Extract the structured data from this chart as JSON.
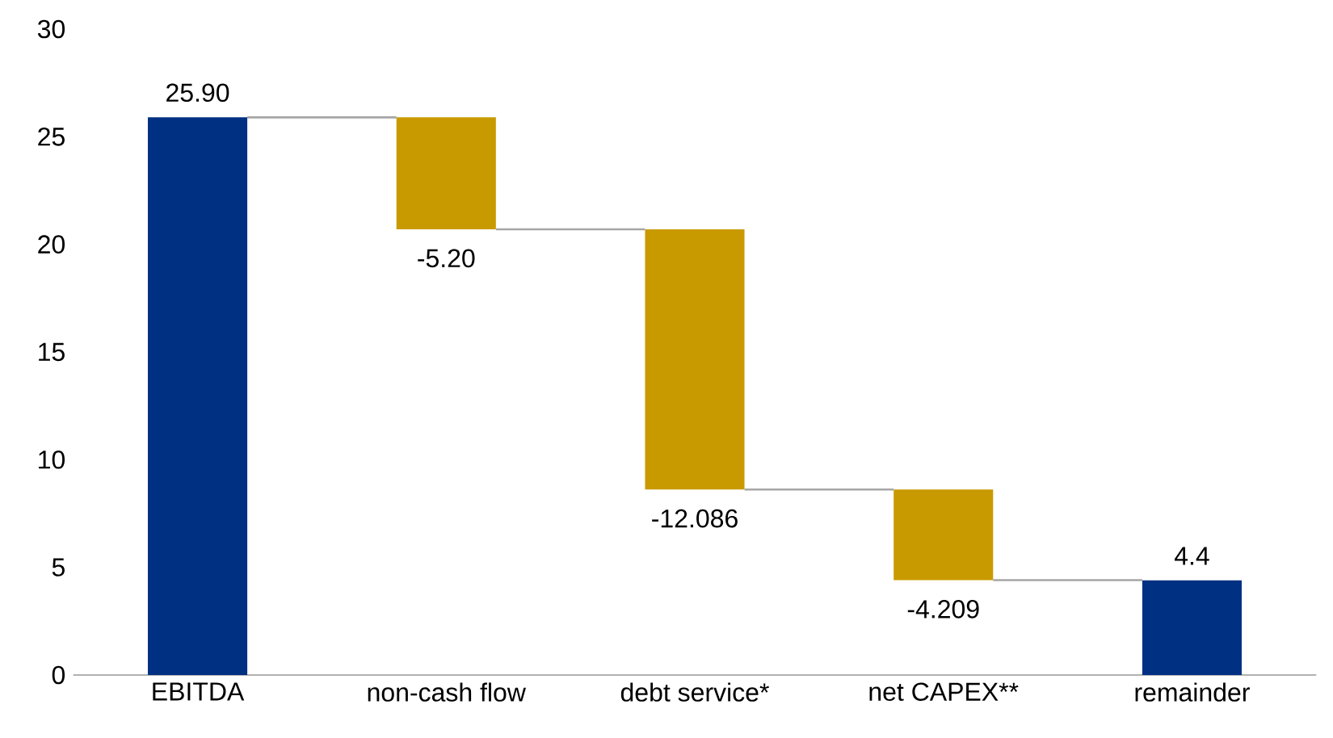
{
  "chart_data": {
    "type": "bar",
    "categories": [
      "EBITDA",
      "non-cash flow",
      "debt service*",
      "net CAPEX**",
      "remainder"
    ],
    "values": [
      25.9,
      -5.2,
      -12.086,
      -4.209,
      4.4
    ],
    "base": [
      0,
      25.9,
      20.7,
      8.614,
      0
    ],
    "colors": [
      "#003082",
      "#c99a00",
      "#c99a00",
      "#c99a00",
      "#003082"
    ],
    "value_labels": [
      "25.90",
      "-5.20",
      "-12.086",
      "-4.209",
      "4.4"
    ],
    "ylim": [
      0,
      30
    ],
    "yticks": [
      0,
      5,
      10,
      15,
      20,
      25,
      30
    ],
    "grid": false
  }
}
